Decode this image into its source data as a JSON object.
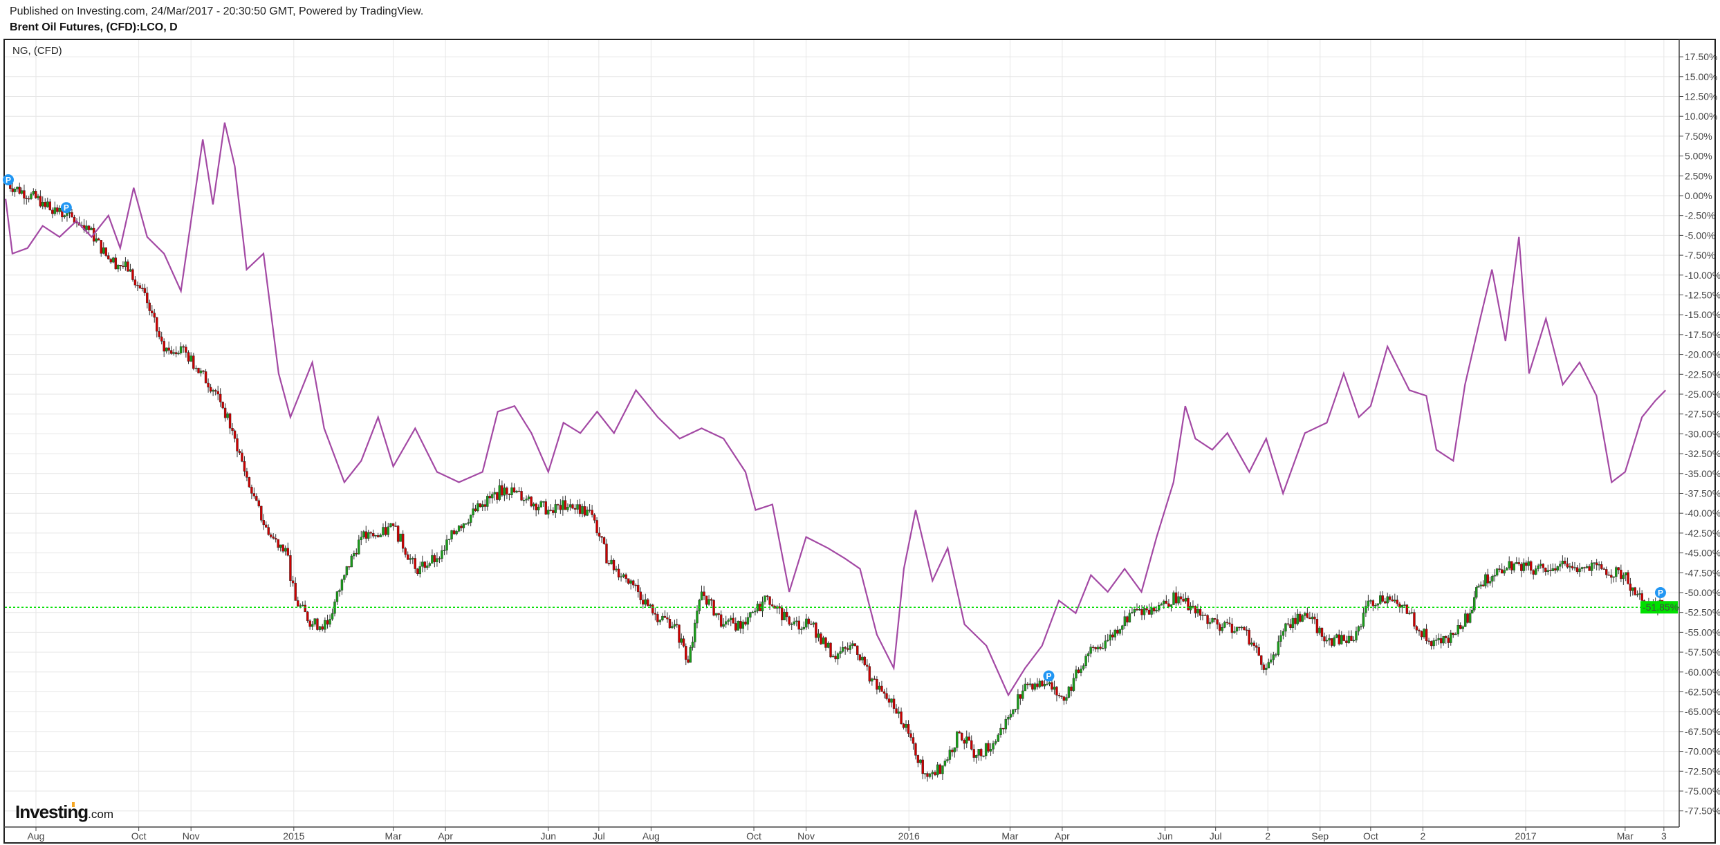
{
  "header": {
    "published": "Published on Investing.com, 24/Mar/2017 - 20:30:50 GMT, Powered by TradingView.",
    "title": "Brent Oil Futures, (CFD):LCO, D"
  },
  "logo": {
    "text": "Investing",
    "suffix": ".com"
  },
  "chart_data": {
    "type": "line",
    "title": "Brent Oil Futures, (CFD):LCO, D",
    "legend_label": "NG,  (CFD)",
    "legend_placement": "top-left",
    "y_axis": {
      "position": "right",
      "unit": "%",
      "range": [
        -77.5,
        17.5
      ],
      "ticks": [
        "17.50%",
        "15.00%",
        "12.50%",
        "10.00%",
        "7.50%",
        "5.00%",
        "2.50%",
        "0.00%",
        "-2.50%",
        "-5.00%",
        "-7.50%",
        "-10.00%",
        "-12.50%",
        "-15.00%",
        "-17.50%",
        "-20.00%",
        "-22.50%",
        "-25.00%",
        "-27.50%",
        "-30.00%",
        "-32.50%",
        "-35.00%",
        "-37.50%",
        "-40.00%",
        "-42.50%",
        "-45.00%",
        "-47.50%",
        "-50.00%",
        "-52.50%",
        "-55.00%",
        "-57.50%",
        "-60.00%",
        "-62.50%",
        "-65.00%",
        "-67.50%",
        "-70.00%",
        "-72.50%",
        "-75.00%",
        "-77.50%"
      ]
    },
    "x_axis": {
      "range": [
        "2014-07-14",
        "2017-03-25"
      ],
      "ticks": [
        {
          "label": "Aug",
          "date": "2014-08-01"
        },
        {
          "label": "Oct",
          "date": "2014-10-01"
        },
        {
          "label": "Nov",
          "date": "2014-11-01"
        },
        {
          "label": "2015",
          "date": "2015-01-01"
        },
        {
          "label": "Mar",
          "date": "2015-03-01"
        },
        {
          "label": "Apr",
          "date": "2015-04-01"
        },
        {
          "label": "Jun",
          "date": "2015-06-01"
        },
        {
          "label": "Jul",
          "date": "2015-07-01"
        },
        {
          "label": "Aug",
          "date": "2015-08-01"
        },
        {
          "label": "Oct",
          "date": "2015-10-01"
        },
        {
          "label": "Nov",
          "date": "2015-11-01"
        },
        {
          "label": "2016",
          "date": "2016-01-01"
        },
        {
          "label": "Mar",
          "date": "2016-03-01"
        },
        {
          "label": "Apr",
          "date": "2016-04-01"
        },
        {
          "label": "Jun",
          "date": "2016-06-01"
        },
        {
          "label": "Jul",
          "date": "2016-07-01"
        },
        {
          "label": "2",
          "date": "2016-08-01"
        },
        {
          "label": "Sep",
          "date": "2016-09-01"
        },
        {
          "label": "Oct",
          "date": "2016-10-01"
        },
        {
          "label": "2",
          "date": "2016-11-01"
        },
        {
          "label": "2017",
          "date": "2017-01-01"
        },
        {
          "label": "Mar",
          "date": "2017-03-01"
        },
        {
          "label": "3",
          "date": "2017-03-24"
        }
      ]
    },
    "grid": true,
    "last_value_label": "-51.85%",
    "last_value": -51.85,
    "colors": {
      "ng": "#a349a4",
      "up": "#1a9c1a",
      "down": "#cc0000",
      "last_price": "#00e000",
      "marker": "#2196f3"
    },
    "markers": [
      {
        "label": "P",
        "date": "2014-07-14",
        "value": 2.0
      },
      {
        "label": "P",
        "date": "2014-08-19",
        "value": -1.5
      },
      {
        "label": "P",
        "date": "2016-03-24",
        "value": -60.5
      },
      {
        "label": "P",
        "date": "2017-03-22",
        "value": -50.0
      }
    ],
    "series": [
      {
        "name": "Brent Oil Futures, (CFD):LCO, D",
        "style": "candlestick",
        "x": [
          "2014-07-14",
          "2014-08-05",
          "2014-08-18",
          "2014-08-31",
          "2014-09-13",
          "2014-09-26",
          "2014-10-06",
          "2014-10-16",
          "2014-10-26",
          "2014-11-04",
          "2014-11-17",
          "2014-11-27",
          "2014-12-07",
          "2014-12-17",
          "2014-12-27",
          "2015-01-02",
          "2015-01-12",
          "2015-01-21",
          "2015-01-31",
          "2015-02-10",
          "2015-02-20",
          "2015-03-01",
          "2015-03-14",
          "2015-03-27",
          "2015-04-09",
          "2015-04-23",
          "2015-05-06",
          "2015-05-19",
          "2015-06-01",
          "2015-06-14",
          "2015-06-27",
          "2015-07-07",
          "2015-07-20",
          "2015-08-02",
          "2015-08-15",
          "2015-08-23",
          "2015-08-31",
          "2015-09-13",
          "2015-09-26",
          "2015-10-09",
          "2015-10-22",
          "2015-11-04",
          "2015-11-17",
          "2015-11-30",
          "2015-12-13",
          "2015-12-26",
          "2016-01-05",
          "2016-01-12",
          "2016-01-21",
          "2016-01-31",
          "2016-02-10",
          "2016-02-20",
          "2016-02-29",
          "2016-03-10",
          "2016-03-23",
          "2016-04-02",
          "2016-04-15",
          "2016-04-28",
          "2016-05-11",
          "2016-05-24",
          "2016-06-09",
          "2016-06-19",
          "2016-07-02",
          "2016-07-18",
          "2016-07-31",
          "2016-08-13",
          "2016-08-23",
          "2016-09-05",
          "2016-09-21",
          "2016-10-01",
          "2016-10-11",
          "2016-10-24",
          "2016-11-06",
          "2016-11-19",
          "2016-11-29",
          "2016-12-04",
          "2016-12-15",
          "2016-12-28",
          "2017-01-07",
          "2017-01-20",
          "2017-02-02",
          "2017-02-15",
          "2017-02-28",
          "2017-03-11",
          "2017-03-23"
        ],
        "values": [
          1.6,
          -0.8,
          -2.5,
          -3.8,
          -8,
          -9.3,
          -13.5,
          -19.6,
          -19,
          -21.7,
          -25,
          -30.6,
          -37.5,
          -42.7,
          -44.4,
          -51,
          -54,
          -54,
          -47.8,
          -43,
          -43,
          -41.6,
          -47,
          -45.7,
          -41.6,
          -38.9,
          -36.8,
          -38.2,
          -39.6,
          -38.9,
          -40.2,
          -46.4,
          -48.5,
          -52.6,
          -54,
          -58.8,
          -49.9,
          -54,
          -54,
          -50.5,
          -54,
          -54,
          -58,
          -56.7,
          -62.2,
          -65,
          -70.5,
          -73.2,
          -71.8,
          -67.7,
          -70.5,
          -69,
          -65.7,
          -61.5,
          -61.5,
          -63.6,
          -58,
          -56,
          -52.6,
          -51.9,
          -50.5,
          -52.6,
          -54,
          -54.7,
          -59.5,
          -54,
          -52.6,
          -56,
          -56,
          -51,
          -50.5,
          -52.6,
          -56.7,
          -55.3,
          -52.6,
          -49.2,
          -47,
          -46.4,
          -47,
          -46.7,
          -47,
          -47,
          -47.8,
          -51,
          -51.85
        ]
      },
      {
        "name": "NG,  (CFD)",
        "style": "line",
        "x": [
          "2014-07-14",
          "2014-07-18",
          "2014-07-27",
          "2014-08-05",
          "2014-08-15",
          "2014-08-25",
          "2014-09-03",
          "2014-09-13",
          "2014-09-20",
          "2014-09-28",
          "2014-10-06",
          "2014-10-16",
          "2014-10-26",
          "2014-11-01",
          "2014-11-08",
          "2014-11-14",
          "2014-11-21",
          "2014-11-27",
          "2014-12-04",
          "2014-12-14",
          "2014-12-23",
          "2014-12-30",
          "2015-01-12",
          "2015-01-19",
          "2015-01-31",
          "2015-02-10",
          "2015-02-20",
          "2015-03-01",
          "2015-03-14",
          "2015-03-27",
          "2015-04-09",
          "2015-04-23",
          "2015-05-02",
          "2015-05-12",
          "2015-05-22",
          "2015-06-01",
          "2015-06-10",
          "2015-06-20",
          "2015-06-30",
          "2015-07-10",
          "2015-07-23",
          "2015-08-05",
          "2015-08-18",
          "2015-08-31",
          "2015-09-13",
          "2015-09-26",
          "2015-10-02",
          "2015-10-12",
          "2015-10-22",
          "2015-11-01",
          "2015-11-14",
          "2015-11-24",
          "2015-12-03",
          "2015-12-13",
          "2015-12-23",
          "2015-12-29",
          "2016-01-05",
          "2016-01-15",
          "2016-01-24",
          "2016-02-03",
          "2016-02-16",
          "2016-02-29",
          "2016-03-10",
          "2016-03-20",
          "2016-03-30",
          "2016-04-09",
          "2016-04-18",
          "2016-04-28",
          "2016-05-08",
          "2016-05-18",
          "2016-05-27",
          "2016-06-06",
          "2016-06-13",
          "2016-06-19",
          "2016-06-29",
          "2016-07-08",
          "2016-07-21",
          "2016-07-31",
          "2016-08-10",
          "2016-08-23",
          "2016-09-05",
          "2016-09-15",
          "2016-09-24",
          "2016-10-01",
          "2016-10-11",
          "2016-10-24",
          "2016-11-03",
          "2016-11-09",
          "2016-11-19",
          "2016-11-26",
          "2016-12-05",
          "2016-12-12",
          "2016-12-20",
          "2016-12-28",
          "2017-01-03",
          "2017-01-13",
          "2017-01-23",
          "2017-02-02",
          "2017-02-12",
          "2017-02-21",
          "2017-03-01",
          "2017-03-11",
          "2017-03-19",
          "2017-03-25"
        ],
        "values": [
          -0.4,
          -7.3,
          -6.6,
          -3.8,
          -5.2,
          -3.2,
          -5.2,
          -2.5,
          -6.6,
          1,
          -5.2,
          -7.3,
          -12,
          -3.2,
          7.1,
          -1.1,
          9.2,
          3.7,
          -9.3,
          -7.3,
          -22.4,
          -27.9,
          -21,
          -29.3,
          -36.1,
          -33.4,
          -27.9,
          -34.1,
          -29.3,
          -34.8,
          -36.1,
          -34.8,
          -27.2,
          -26.5,
          -29.9,
          -34.8,
          -28.6,
          -29.9,
          -27.2,
          -29.9,
          -24.5,
          -27.9,
          -30.6,
          -29.3,
          -30.6,
          -34.8,
          -39.6,
          -38.9,
          -49.9,
          -43,
          -44.4,
          -45.7,
          -47,
          -55.3,
          -59.5,
          -47,
          -39.6,
          -48.5,
          -44.4,
          -54,
          -56.7,
          -62.9,
          -59.5,
          -56.7,
          -51,
          -52.6,
          -47.8,
          -49.9,
          -47,
          -49.9,
          -43,
          -36.1,
          -26.5,
          -30.6,
          -32,
          -29.9,
          -34.8,
          -30.6,
          -37.5,
          -29.9,
          -28.6,
          -22.4,
          -27.9,
          -26.5,
          -19,
          -24.5,
          -25.2,
          -32,
          -33.4,
          -23.8,
          -15.5,
          -9.3,
          -18.3,
          -5.2,
          -22.4,
          -15.5,
          -23.8,
          -21,
          -25.2,
          -36.1,
          -34.8,
          -27.9,
          -25.8,
          -24.5
        ]
      }
    ]
  }
}
